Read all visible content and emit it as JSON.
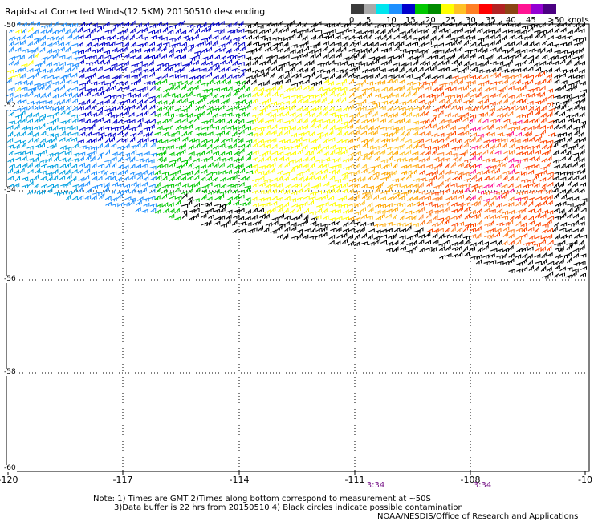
{
  "title": "Rapidscat Corrected Winds(12.5KM) 20150510 descending",
  "colorbar": {
    "colors": [
      "#3b3b3b",
      "#a9a9a9",
      "#00e5ee",
      "#1e90ff",
      "#0000cd",
      "#00c800",
      "#008b00",
      "#ffff00",
      "#ffc125",
      "#ff7f24",
      "#ff0000",
      "#b22222",
      "#8b4513",
      "#ff1493",
      "#9400d3",
      "#4b0082"
    ],
    "labels": [
      "0",
      "5",
      "10",
      "15",
      "20",
      "25",
      "30",
      "35",
      "40",
      "45",
      ">50 knots"
    ]
  },
  "axes": {
    "x_ticks": [
      "-120",
      "-117",
      "-114",
      "-111",
      "-108",
      "-10"
    ],
    "y_ticks": [
      "-50",
      "-52",
      "-54",
      "-56",
      "-58",
      "-60"
    ]
  },
  "pass_times": [
    "3:34",
    "3:34"
  ],
  "notes": {
    "line1": "Note: 1) Times are GMT 2)Times along bottom correspond to measurement at ~50S",
    "line2": "3)Data buffer is 22 hrs from 20150510 4) Black circles indicate possible contamination",
    "line3": "NOAA/NESDIS/Office of Research and Applications"
  }
}
